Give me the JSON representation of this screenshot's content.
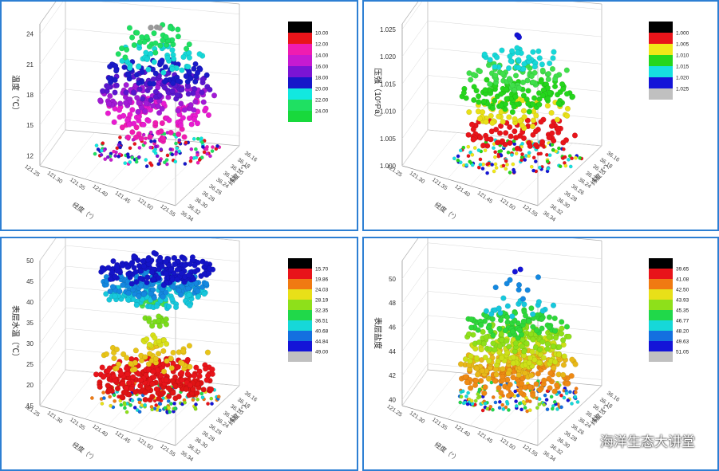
{
  "chart_data": [
    {
      "type": "scatter3d",
      "ylabel": "温度（℃）",
      "zlim": [
        11,
        25
      ],
      "zticks": [
        "12",
        "15",
        "18",
        "21",
        "24"
      ],
      "lon_ticks": [
        "121.25",
        "121.30",
        "121.35",
        "121.40",
        "121.45",
        "121.50",
        "121.55"
      ],
      "lon_label": "经度（°）",
      "lat_ticks": [
        "36.16",
        "36.18",
        "36.20",
        "36.22",
        "36.24",
        "36.26",
        "36.28",
        "36.30",
        "36.32",
        "36.34"
      ],
      "lat_label": "纬度（°）",
      "legend": [
        "10.00",
        "12.00",
        "14.00",
        "16.00",
        "18.00",
        "20.00",
        "22.00",
        "24.00"
      ],
      "colors": [
        "#000000",
        "#e8141a",
        "#ef1cb1",
        "#c61ad1",
        "#7a14d4",
        "#1616c9",
        "#12e8e0",
        "#1fe062",
        "#18d93c"
      ],
      "layers": [
        {
          "z": 12.0,
          "count": 150,
          "spread": 0.95,
          "jitter": 0.25,
          "color": "mixed"
        },
        {
          "z": 14.0,
          "count": 25,
          "spread": 0.6,
          "jitter": 0.6,
          "color": "#ef1cb1"
        },
        {
          "z": 15.7,
          "count": 70,
          "spread": 0.85,
          "jitter": 0.6,
          "color": "#e81bd0"
        },
        {
          "z": 17.2,
          "count": 90,
          "spread": 0.9,
          "jitter": 0.6,
          "color": "#a21ad6"
        },
        {
          "z": 18.4,
          "count": 70,
          "spread": 0.85,
          "jitter": 0.5,
          "color": "#5a17cf"
        },
        {
          "z": 19.6,
          "count": 70,
          "spread": 0.8,
          "jitter": 0.5,
          "color": "#1a1ac8"
        },
        {
          "z": 21.0,
          "count": 45,
          "spread": 0.7,
          "jitter": 0.6,
          "color": "#16d8d8"
        },
        {
          "z": 22.0,
          "count": 20,
          "spread": 0.6,
          "jitter": 0.8,
          "color": "#1fe062"
        },
        {
          "z": 23.4,
          "count": 18,
          "spread": 0.5,
          "jitter": 0.6,
          "color": "#1fe062"
        },
        {
          "z": 24.1,
          "count": 4,
          "spread": 0.15,
          "jitter": 0.1,
          "color": "#9a9a9a"
        }
      ]
    },
    {
      "type": "scatter3d",
      "ylabel": "压强（10⁵Pa）",
      "zlim": [
        1.0,
        1.026
      ],
      "zticks": [
        "1.000",
        "1.005",
        "1.010",
        "1.015",
        "1.020",
        "1.025"
      ],
      "lon_ticks": [
        "121.25",
        "121.30",
        "121.35",
        "121.40",
        "121.45",
        "121.50",
        "121.55"
      ],
      "lon_label": "经度（°）",
      "lat_ticks": [
        "36.16",
        "36.18",
        "36.20",
        "36.22",
        "36.24",
        "36.26",
        "36.28",
        "36.30",
        "36.32",
        "36.34"
      ],
      "lat_label": "纬度（°）",
      "legend": [
        "1.000",
        "1.005",
        "1.010",
        "1.015",
        "1.020",
        "1.025"
      ],
      "colors": [
        "#000000",
        "#e8141a",
        "#f0e818",
        "#25d61c",
        "#16e0e0",
        "#1414d8",
        "#c0c0c0"
      ],
      "layers": [
        {
          "z": 1.0005,
          "count": 150,
          "spread": 0.95,
          "jitter": 0.0006,
          "color": "mixed"
        },
        {
          "z": 1.005,
          "count": 70,
          "spread": 0.85,
          "jitter": 0.0012,
          "color": "#e8141a"
        },
        {
          "z": 1.0085,
          "count": 60,
          "spread": 0.75,
          "jitter": 0.0012,
          "color": "#e8e018"
        },
        {
          "z": 1.012,
          "count": 110,
          "spread": 0.85,
          "jitter": 0.0014,
          "color": "#25d61c"
        },
        {
          "z": 1.0155,
          "count": 60,
          "spread": 0.75,
          "jitter": 0.0012,
          "color": "#3fe04a"
        },
        {
          "z": 1.0185,
          "count": 40,
          "spread": 0.6,
          "jitter": 0.001,
          "color": "#16d8d8"
        },
        {
          "z": 1.0225,
          "count": 3,
          "spread": 0.1,
          "jitter": 0.0004,
          "color": "#1414d8"
        }
      ]
    },
    {
      "type": "scatter3d",
      "ylabel": "表层水温（℃）",
      "zlim": [
        15,
        50
      ],
      "zticks": [
        "15",
        "20",
        "25",
        "30",
        "35",
        "40",
        "45",
        "50"
      ],
      "lon_ticks": [
        "121.25",
        "121.30",
        "121.35",
        "121.40",
        "121.45",
        "121.50",
        "121.55"
      ],
      "lon_label": "经度（°）",
      "lat_ticks": [
        "36.16",
        "36.18",
        "36.20",
        "36.22",
        "36.24",
        "36.26",
        "36.28",
        "36.30",
        "36.32",
        "36.34"
      ],
      "lat_label": "纬度（°）",
      "legend": [
        "15.70",
        "19.86",
        "24.03",
        "28.19",
        "32.35",
        "36.51",
        "40.68",
        "44.84",
        "49.00"
      ],
      "colors": [
        "#000000",
        "#e8141a",
        "#f07a12",
        "#e8e018",
        "#8ee01a",
        "#20d84a",
        "#16d8d8",
        "#1470e0",
        "#1414d8",
        "#c0c0c0"
      ],
      "layers": [
        {
          "z": 15.8,
          "count": 150,
          "spread": 0.95,
          "jitter": 0.5,
          "color": "mixed"
        },
        {
          "z": 18.5,
          "count": 140,
          "spread": 0.85,
          "jitter": 1.2,
          "color": "#e01414"
        },
        {
          "z": 21.5,
          "count": 120,
          "spread": 0.9,
          "jitter": 1.0,
          "color": "#e8141a"
        },
        {
          "z": 25.0,
          "count": 50,
          "spread": 0.85,
          "jitter": 0.8,
          "color": "#e8c418"
        },
        {
          "z": 29.0,
          "count": 14,
          "spread": 0.3,
          "jitter": 1.5,
          "color": "#d8e018"
        },
        {
          "z": 34.0,
          "count": 14,
          "spread": 0.2,
          "jitter": 1.5,
          "color": "#7adc1a"
        },
        {
          "z": 38.0,
          "count": 12,
          "spread": 0.2,
          "jitter": 1.0,
          "color": "#4ae04a"
        },
        {
          "z": 40.3,
          "count": 120,
          "spread": 0.75,
          "jitter": 0.8,
          "color": "#16c8dc"
        },
        {
          "z": 43.0,
          "count": 130,
          "spread": 0.8,
          "jitter": 0.8,
          "color": "#1488e0"
        },
        {
          "z": 46.5,
          "count": 180,
          "spread": 0.85,
          "jitter": 1.0,
          "color": "#1414c8"
        }
      ]
    },
    {
      "type": "scatter3d",
      "ylabel": "表层盐度",
      "zlim": [
        39.5,
        51.5
      ],
      "zticks": [
        "40",
        "42",
        "44",
        "46",
        "48",
        "50"
      ],
      "lon_ticks": [
        "121.25",
        "121.30",
        "121.35",
        "121.40",
        "121.45",
        "121.50",
        "121.55"
      ],
      "lon_label": "经度（°）",
      "lat_ticks": [
        "36.16",
        "36.18",
        "36.20",
        "36.22",
        "36.24",
        "36.26",
        "36.28",
        "36.30",
        "36.32",
        "36.34"
      ],
      "lat_label": "纬度（°）",
      "legend": [
        "39.65",
        "41.08",
        "42.50",
        "43.93",
        "45.35",
        "46.77",
        "48.20",
        "49.63",
        "51.05"
      ],
      "colors": [
        "#000000",
        "#e8141a",
        "#f07a12",
        "#e8e018",
        "#8ee01a",
        "#20d84a",
        "#16d8d8",
        "#1470e0",
        "#1414d8",
        "#c0c0c0"
      ],
      "layers": [
        {
          "z": 39.8,
          "count": 150,
          "spread": 0.95,
          "jitter": 0.2,
          "color": "mixed"
        },
        {
          "z": 41.2,
          "count": 110,
          "spread": 0.85,
          "jitter": 0.5,
          "color": "#ef8a14"
        },
        {
          "z": 42.4,
          "count": 100,
          "spread": 0.85,
          "jitter": 0.5,
          "color": "#e8b818"
        },
        {
          "z": 43.5,
          "count": 100,
          "spread": 0.85,
          "jitter": 0.5,
          "color": "#cde018"
        },
        {
          "z": 44.6,
          "count": 100,
          "spread": 0.8,
          "jitter": 0.5,
          "color": "#8ee01a"
        },
        {
          "z": 45.8,
          "count": 80,
          "spread": 0.75,
          "jitter": 0.5,
          "color": "#2ed83a"
        },
        {
          "z": 47.2,
          "count": 18,
          "spread": 0.55,
          "jitter": 0.7,
          "color": "#16c8dc"
        },
        {
          "z": 49.0,
          "count": 8,
          "spread": 0.5,
          "jitter": 0.9,
          "color": "#1488e0"
        },
        {
          "z": 50.6,
          "count": 2,
          "spread": 0.3,
          "jitter": 0.5,
          "color": "#1414d8"
        }
      ]
    }
  ],
  "watermark": {
    "text": "海洋生态大讲堂",
    "icon": "wechat-icon"
  }
}
